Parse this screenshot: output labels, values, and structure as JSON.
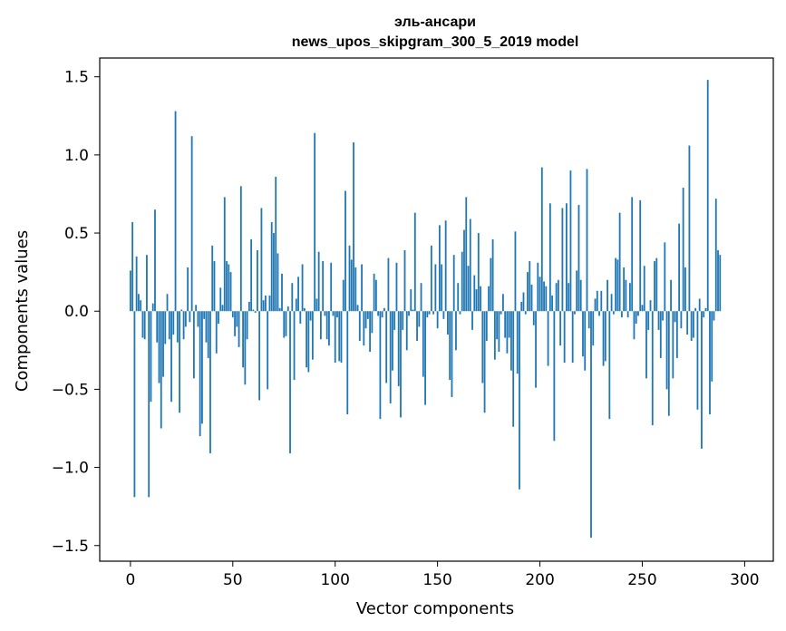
{
  "chart_data": {
    "type": "bar",
    "title": "эль-ансари",
    "subtitle": "news_upos_skipgram_300_5_2019 model",
    "xlabel": "Vector components",
    "ylabel": "Components values",
    "xlim": [
      -15,
      314
    ],
    "ylim": [
      -1.6,
      1.62
    ],
    "xticks": [
      0,
      50,
      100,
      150,
      200,
      250,
      300
    ],
    "xtick_labels": [
      "0",
      "50",
      "100",
      "150",
      "200",
      "250",
      "300"
    ],
    "yticks": [
      1.5,
      1.0,
      0.5,
      0.0,
      -0.5,
      -1.0,
      -1.5
    ],
    "ytick_labels": [
      "1.5",
      "1.0",
      "0.5",
      "0.0",
      "−0.5",
      "−1.0",
      "−1.5"
    ],
    "grid": false,
    "bar_color": "#1f77b4",
    "values": [
      0.26,
      0.57,
      -1.19,
      0.35,
      0.11,
      0.07,
      -0.17,
      -0.18,
      0.36,
      -1.19,
      -0.58,
      0.05,
      0.65,
      -0.2,
      -0.46,
      -0.75,
      -0.42,
      -0.21,
      0.11,
      -0.18,
      -0.58,
      -0.15,
      1.28,
      -0.2,
      -0.65,
      0.01,
      -0.18,
      -0.1,
      0.28,
      -0.07,
      1.12,
      -0.43,
      0.04,
      -0.1,
      -0.8,
      -0.72,
      -0.05,
      -0.2,
      -0.3,
      -0.91,
      0.42,
      0.32,
      -0.27,
      -0.08,
      0.15,
      0.04,
      0.73,
      0.32,
      0.3,
      0.25,
      -0.04,
      -0.16,
      -0.1,
      -0.23,
      0.8,
      -0.36,
      -0.47,
      -0.18,
      0.06,
      0.46,
      0.01,
      -0.01,
      0.39,
      -0.57,
      0.66,
      0.07,
      0.1,
      -0.5,
      0.1,
      0.57,
      0.5,
      0.86,
      0.37,
      0.02,
      0.24,
      -0.17,
      -0.16,
      0.03,
      -0.91,
      0.18,
      -0.44,
      0.08,
      0.22,
      -0.08,
      0.3,
      0.02,
      -0.36,
      -0.39,
      -0.06,
      -0.31,
      1.14,
      0.08,
      0.38,
      -0.18,
      0.32,
      -0.03,
      -0.18,
      -0.22,
      0.31,
      -0.03,
      -0.33,
      -0.04,
      -0.32,
      -0.33,
      0.2,
      0.77,
      -0.66,
      0.42,
      0.33,
      1.08,
      0.28,
      0.04,
      -0.19,
      0.3,
      -0.22,
      -0.11,
      -0.05,
      -0.26,
      -0.14,
      0.24,
      0.2,
      -0.03,
      -0.69,
      -0.04,
      0.02,
      -0.46,
      0.34,
      -0.59,
      -0.38,
      -0.12,
      0.31,
      -0.48,
      -0.68,
      -0.12,
      0.39,
      -0.25,
      -0.03,
      0.14,
      0.01,
      0.63,
      -0.19,
      -0.1,
      0.18,
      -0.42,
      -0.6,
      -0.04,
      -0.02,
      0.42,
      -0.02,
      0.3,
      -0.11,
      0.55,
      0.3,
      -0.05,
      0.58,
      -0.15,
      -0.44,
      -0.55,
      0.36,
      -0.25,
      0.18,
      -0.02,
      0.38,
      0.52,
      0.73,
      0.29,
      0.59,
      -0.12,
      0.23,
      0.14,
      0.5,
      0.16,
      -0.46,
      -0.65,
      -0.19,
      0.16,
      0.34,
      0.46,
      -0.31,
      -0.18,
      -0.26,
      -0.02,
      0.11,
      -0.17,
      -0.27,
      -0.17,
      -0.38,
      -0.74,
      0.51,
      -0.4,
      -1.14,
      0.06,
      0.12,
      -0.02,
      0.25,
      0.32,
      0.17,
      -0.09,
      -0.49,
      0.31,
      0.22,
      0.92,
      0.19,
      0.16,
      -0.35,
      0.69,
      0.1,
      -0.83,
      0.18,
      0.2,
      -0.22,
      0.66,
      -0.33,
      0.69,
      0.18,
      0.9,
      -0.33,
      -0.02,
      0.26,
      0.68,
      0.2,
      -0.29,
      -0.38,
      0.91,
      -0.11,
      -1.45,
      -0.22,
      0.08,
      0.13,
      -0.03,
      0.13,
      -0.35,
      -0.32,
      0.2,
      -0.69,
      0.11,
      -0.02,
      0.34,
      0.33,
      0.63,
      -0.04,
      0.28,
      0.2,
      -0.04,
      0.18,
      0.73,
      -0.18,
      -0.08,
      -0.03,
      0.71,
      0.04,
      0.29,
      -0.43,
      -0.12,
      0.07,
      -0.73,
      0.32,
      0.34,
      -0.12,
      -0.3,
      -0.06,
      0.44,
      -0.5,
      -0.67,
      0.2,
      -0.43,
      -0.07,
      -0.3,
      0.56,
      -0.11,
      0.79,
      0.28,
      -0.15,
      1.06,
      -0.19,
      -0.17,
      0.02,
      -0.63,
      0.08,
      -0.88,
      -0.04,
      0.02,
      1.48,
      -0.66,
      -0.45,
      -0.06,
      0.72,
      0.39,
      0.36
    ]
  }
}
